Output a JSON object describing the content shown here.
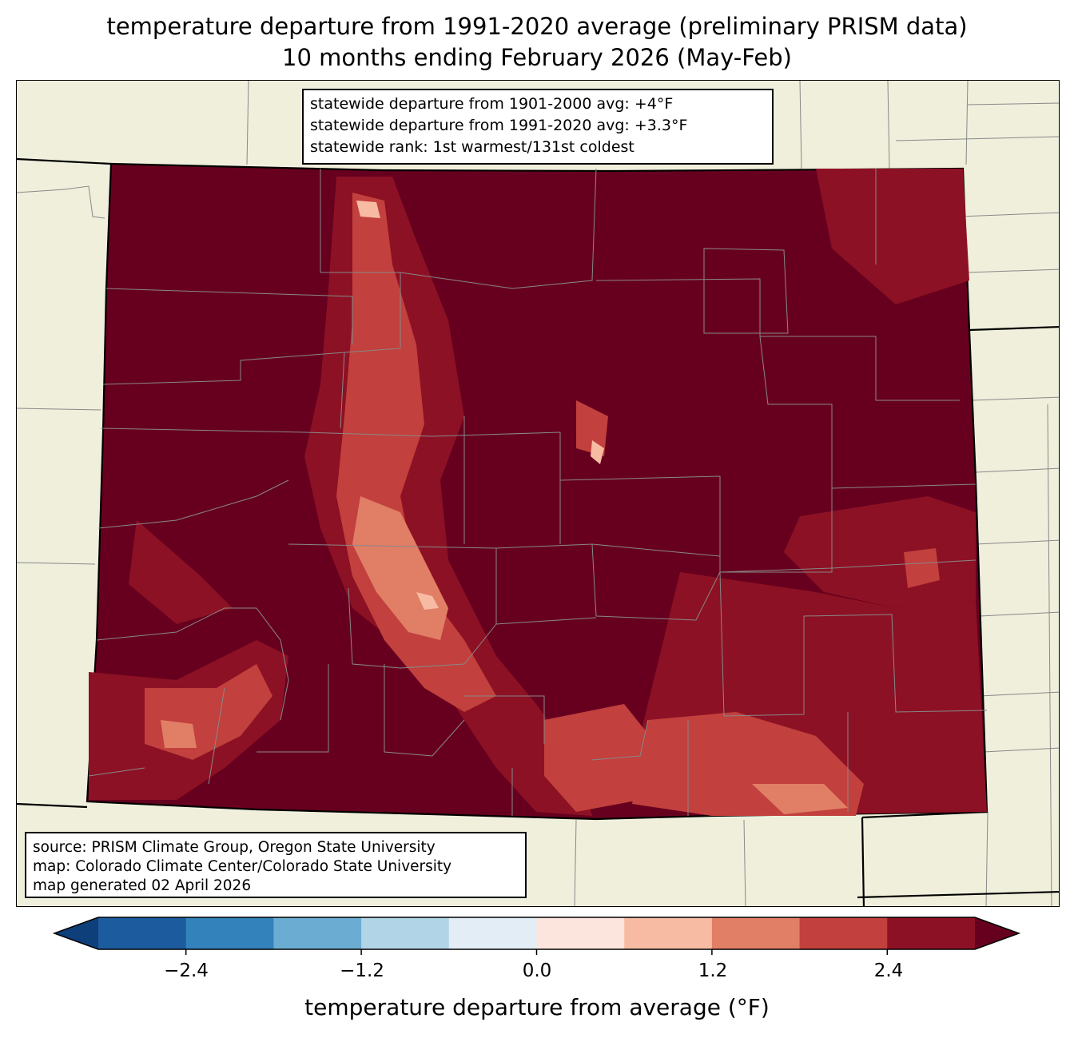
{
  "title": {
    "line1": "temperature departure from 1991-2020 average (preliminary PRISM data)",
    "line2": "10 months ending February 2026 (May-Feb)"
  },
  "stats_box": {
    "line1": "statewide departure from 1901-2000 avg: +4°F",
    "line2": "statewide departure from 1991-2020 avg: +3.3°F",
    "line3": "statewide rank: 1st warmest/131st coldest"
  },
  "source_box": {
    "line1": "source: PRISM Climate Group, Oregon State University",
    "line2": "map: Colorado Climate Center/Colorado State University",
    "line3": "map generated 02 April 2026"
  },
  "colorbar": {
    "label": "temperature departure from average (°F)",
    "ticks": [
      "−2.4",
      "−1.2",
      "0.0",
      "1.2",
      "2.4"
    ],
    "tick_values": [
      -2.4,
      -1.2,
      0.0,
      1.2,
      2.4
    ],
    "bins": [
      -3.0,
      -2.4,
      -1.8,
      -1.2,
      -0.6,
      0.0,
      0.6,
      1.2,
      1.8,
      2.4,
      3.0
    ],
    "colors": [
      "#0e3f7a",
      "#1d5b9f",
      "#3482bc",
      "#6badd2",
      "#b2d4e7",
      "#e3edf5",
      "#fbe5dc",
      "#f7bba3",
      "#e17e66",
      "#c2403d",
      "#8d1124",
      "#67001f"
    ]
  },
  "map_colors": {
    "land": "#efefdc",
    "max": "#67001f",
    "level_2_4": "#8d1124",
    "level_1_8": "#c2403d",
    "level_1_2": "#e17e66",
    "level_0_6": "#f7bba3"
  }
}
